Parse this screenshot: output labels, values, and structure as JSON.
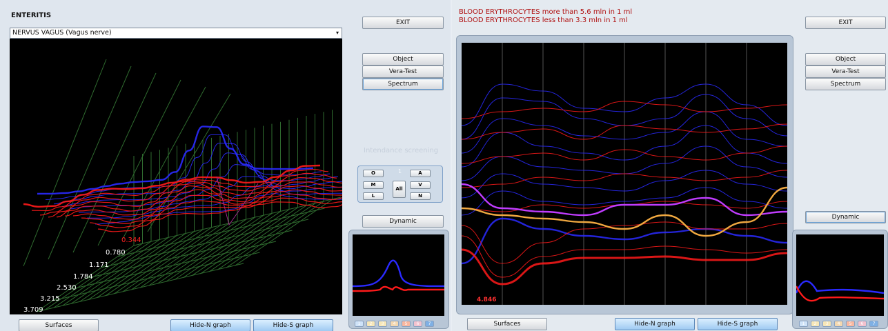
{
  "left": {
    "title": "ENTERITIS",
    "dropdown_value": "NERVUS  VAGUS  (Vagus nerve)",
    "buttons": {
      "exit": "EXIT",
      "object": "Object",
      "vera_test": "Vera-Test",
      "spectrum": "Spectrum",
      "dynamic": "Dynamic",
      "surfaces": "Surfaces",
      "hide_n": "Hide-N graph",
      "hide_s": "Hide-S graph"
    },
    "screening_label": "Intendance screening",
    "controls": {
      "o": "O",
      "a": "A",
      "m": "M",
      "all": "All",
      "v": "V",
      "l": "L",
      "n": "N",
      "center_digit": "1"
    },
    "depth_labels": [
      "0.344",
      "0.780",
      "1.171",
      "1.784",
      "2.530",
      "3.215",
      "3.709"
    ],
    "mini_buttons": [
      "1",
      "2",
      "3",
      "4",
      "5",
      "6",
      "7"
    ]
  },
  "right": {
    "alerts": [
      "BLOOD ERYTHROCYTES more than 5.6 mln in 1 ml",
      "BLOOD ERYTHROCYTES less than 3.3 mln in 1 ml"
    ],
    "plot_marker": "4.846",
    "buttons": {
      "exit": "EXIT",
      "object": "Object",
      "vera_test": "Vera-Test",
      "spectrum": "Spectrum",
      "dynamic": "Dynamic",
      "surfaces": "Surfaces",
      "hide_n": "Hide-N graph",
      "hide_s": "Hide-S graph"
    },
    "mini_buttons": [
      "1",
      "2",
      "3",
      "4",
      "5",
      "6",
      "7"
    ]
  },
  "colors": {
    "blue_curve": "#2a2aff",
    "red_curve": "#ff1a1a",
    "violet_curve": "#c03cff",
    "orange_curve": "#f0a840",
    "grid": "#2f6b2f"
  }
}
